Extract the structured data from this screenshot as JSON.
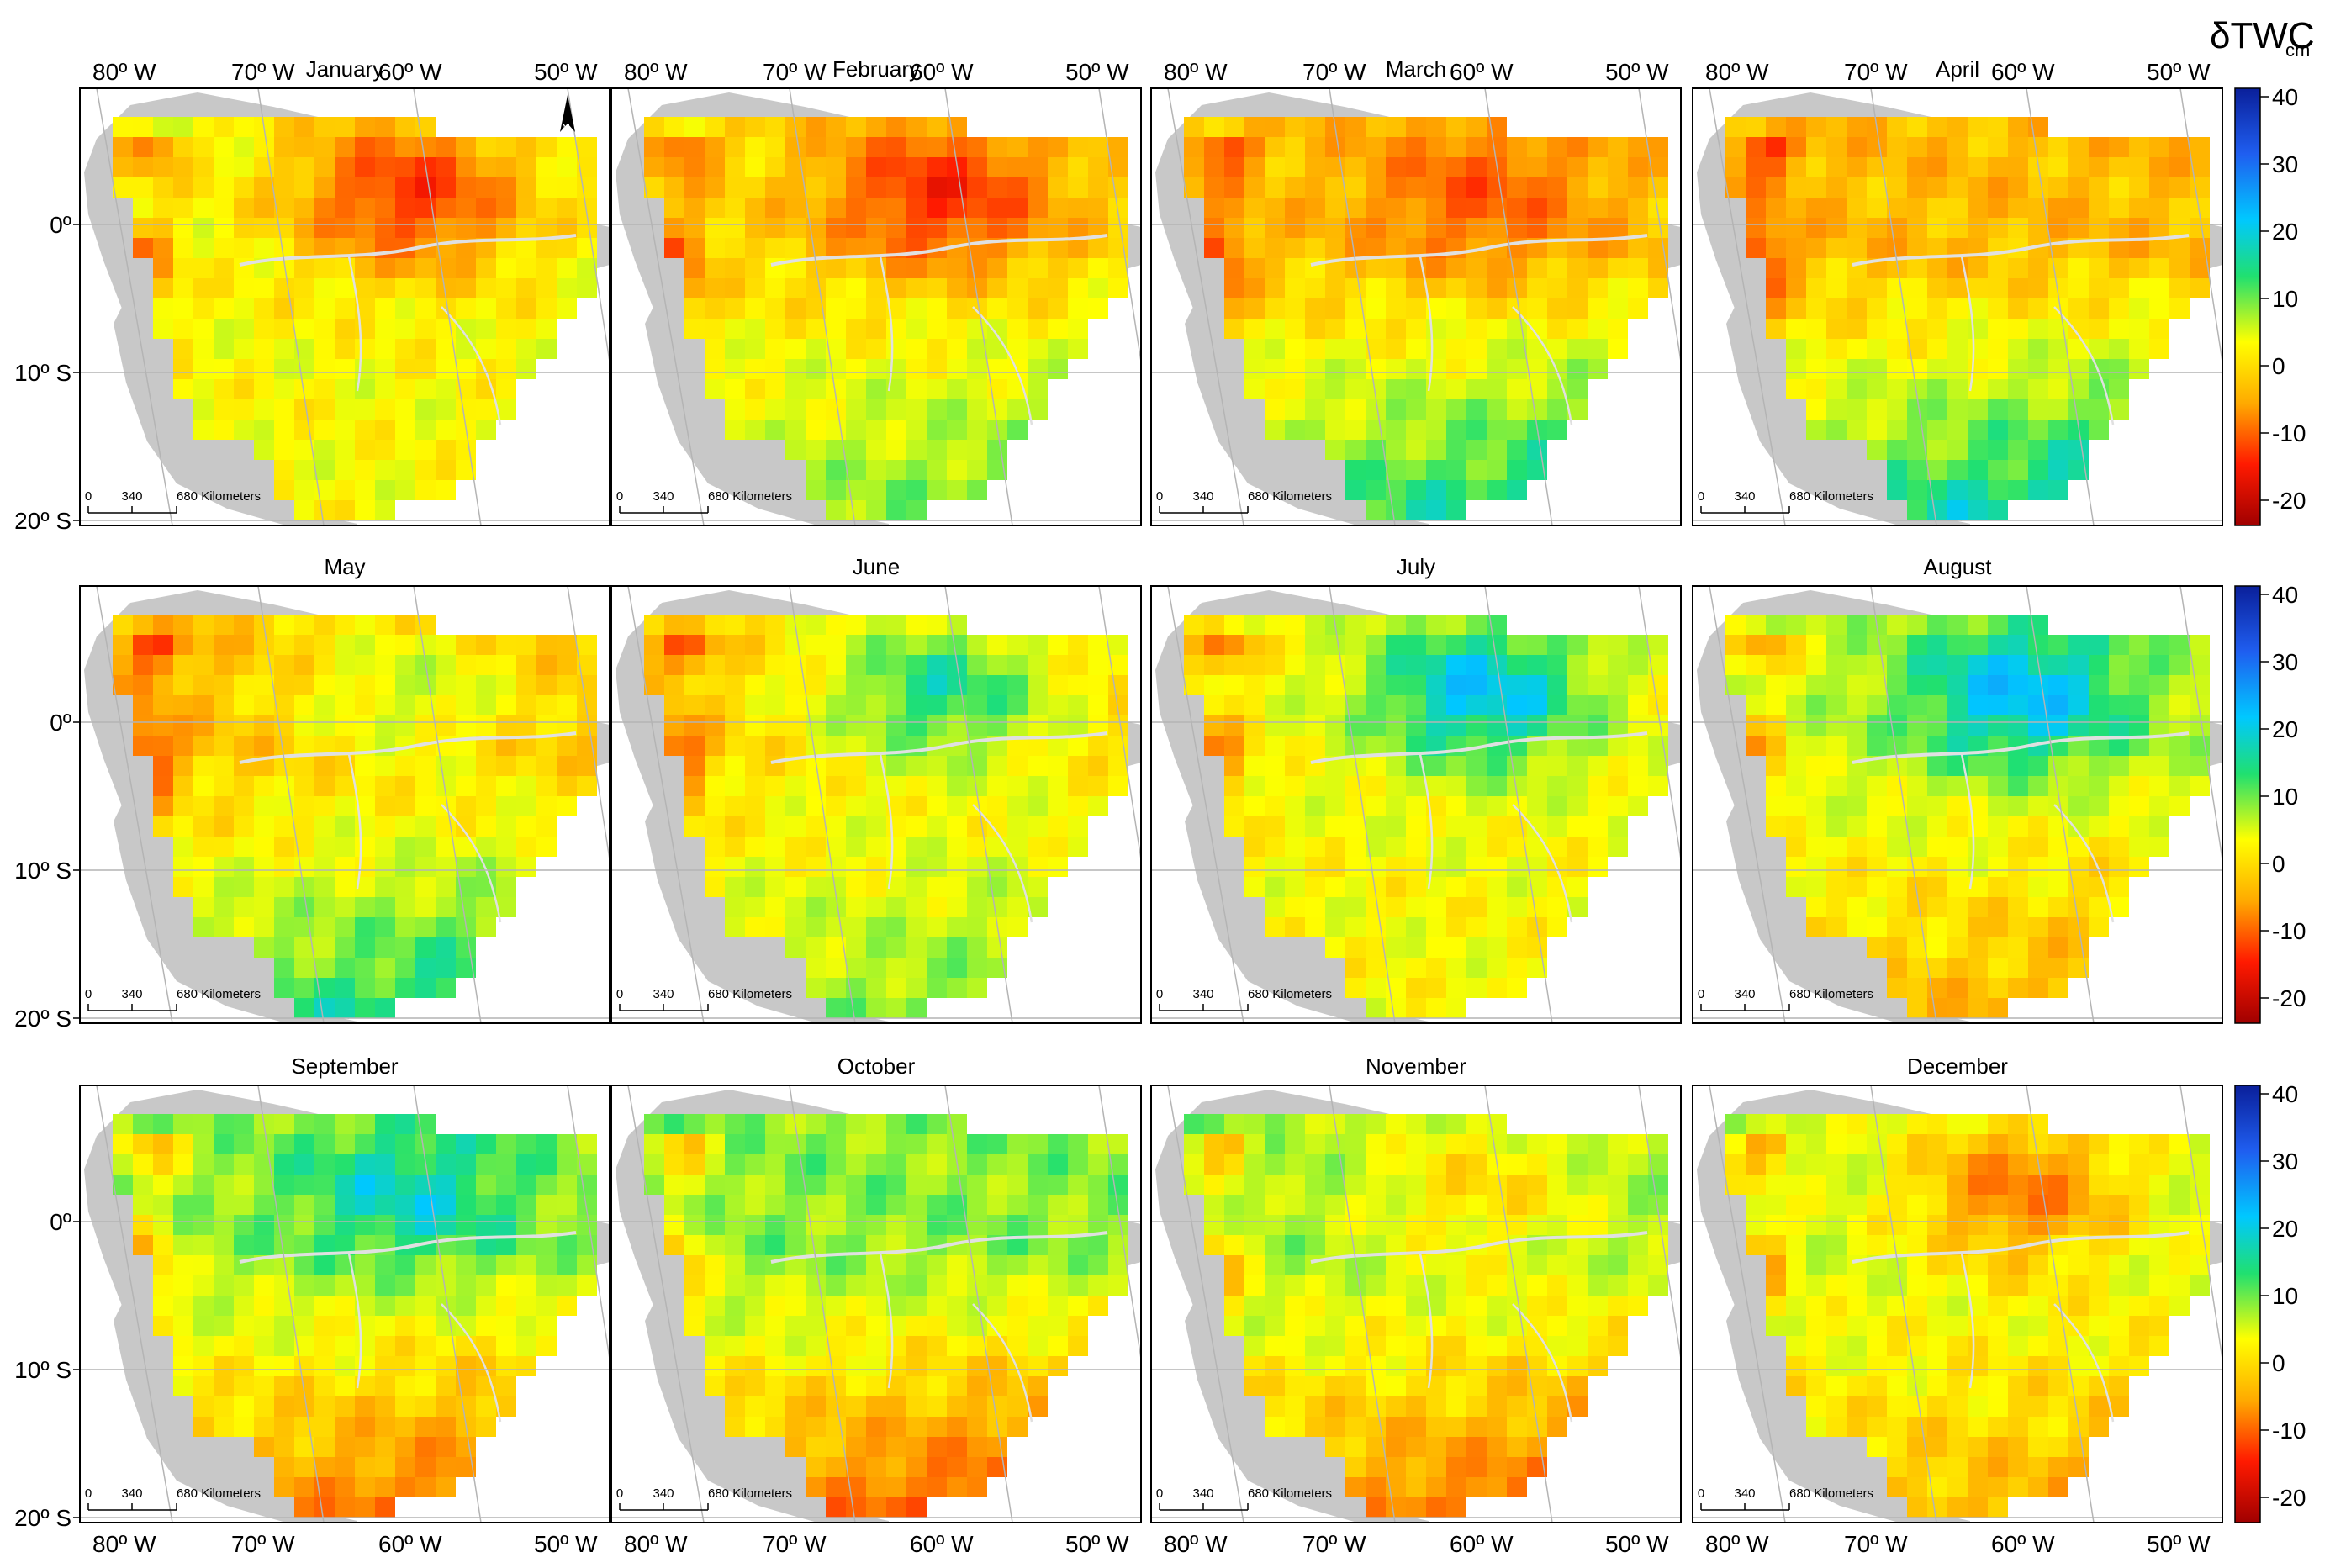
{
  "months": [
    "January",
    "February",
    "March",
    "April",
    "May",
    "June",
    "July",
    "August",
    "September",
    "October",
    "November",
    "December"
  ],
  "longitude_labels": [
    "80º W",
    "70º W",
    "60º W",
    "50º W"
  ],
  "latitude_labels": [
    "0º",
    "10º S",
    "20º S"
  ],
  "scale_bar": {
    "labels": [
      "0",
      "340",
      "680 Kilometers"
    ]
  },
  "north_arrow": {
    "label": "N"
  },
  "colorbar": {
    "title": "δTWC",
    "unit": "cm",
    "ticks": [
      "40",
      "30",
      "20",
      "10",
      "0",
      "-10",
      "-20"
    ],
    "colors": [
      "#0a1f9a",
      "#1f5ef0",
      "#00c8ff",
      "#20e070",
      "#ffff00",
      "#ffaa00",
      "#ff1a00",
      "#a00000"
    ]
  },
  "colors": {
    "land_no_data": "#c8c8c8",
    "frame": "#000000",
    "graticule": "#b4b4b4"
  }
}
